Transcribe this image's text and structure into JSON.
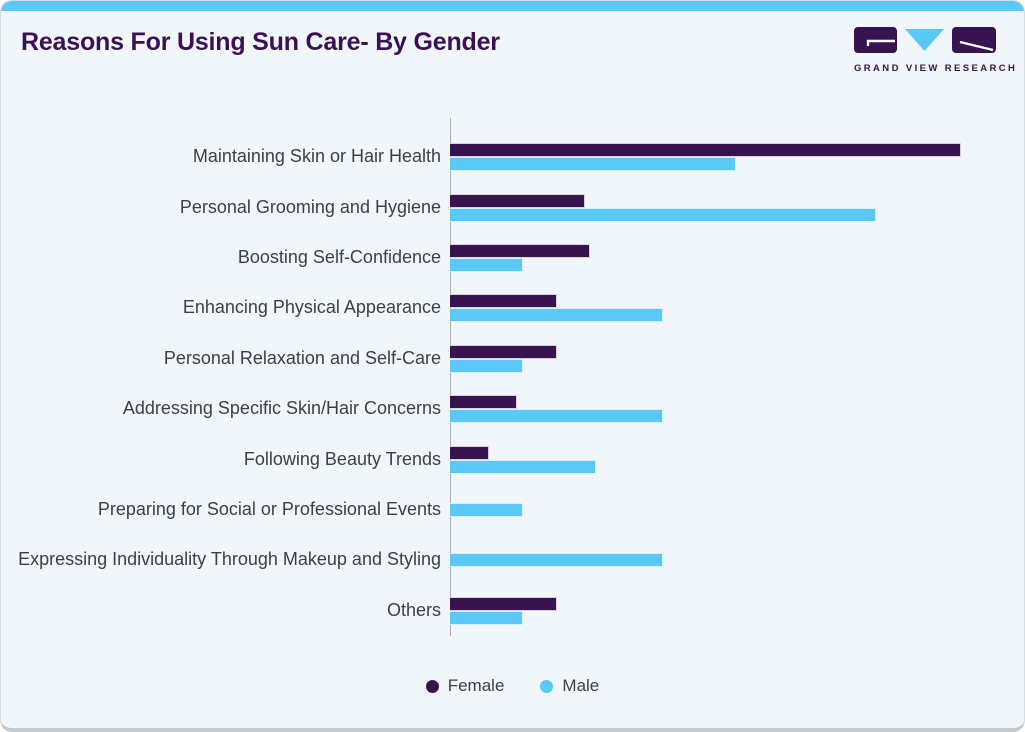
{
  "header": {
    "title": "Reasons For Using Sun Care- By Gender"
  },
  "logo": {
    "brand": "GRAND VIEW RESEARCH",
    "purple": "#371450",
    "blue": "#5bc9f5"
  },
  "legend": {
    "items": [
      {
        "label": "Female",
        "color": "#371450"
      },
      {
        "label": "Male",
        "color": "#5bc9f5"
      }
    ]
  },
  "colors": {
    "female_bar": "#371450",
    "male_bar": "#5bc9f5",
    "card_background": "#f1f6fa",
    "top_strip": "#5bc9f5",
    "title_text": "#3b1156",
    "category_text": "#3e3d49",
    "axis_line": "#a9acb1"
  },
  "chart_data": {
    "type": "bar",
    "orientation": "horizontal",
    "title": "Reasons For Using Sun Care- By Gender",
    "categories": [
      "Maintaining Skin or Hair Health",
      "Personal Grooming and Hygiene",
      "Boosting Self-Confidence",
      "Enhancing Physical Appearance",
      "Personal Relaxation and Self-Care",
      "Addressing Specific Skin/Hair Concerns",
      "Following Beauty Trends",
      "Preparing for Social or Professional Events",
      "Expressing Individuality Through Makeup and Styling",
      "Others"
    ],
    "series": [
      {
        "name": "Female",
        "color": "#371450",
        "values": [
          91,
          24,
          25,
          19,
          19,
          12,
          7,
          null,
          null,
          19
        ]
      },
      {
        "name": "Male",
        "color": "#5bc9f5",
        "values": [
          51,
          76,
          13,
          38,
          13,
          38,
          26,
          13,
          38,
          13
        ]
      }
    ],
    "value_axis": {
      "min": 0,
      "max": 100,
      "note": "axis unlabeled; values estimated as percent of plot width"
    },
    "grid": false,
    "legend_position": "bottom"
  }
}
